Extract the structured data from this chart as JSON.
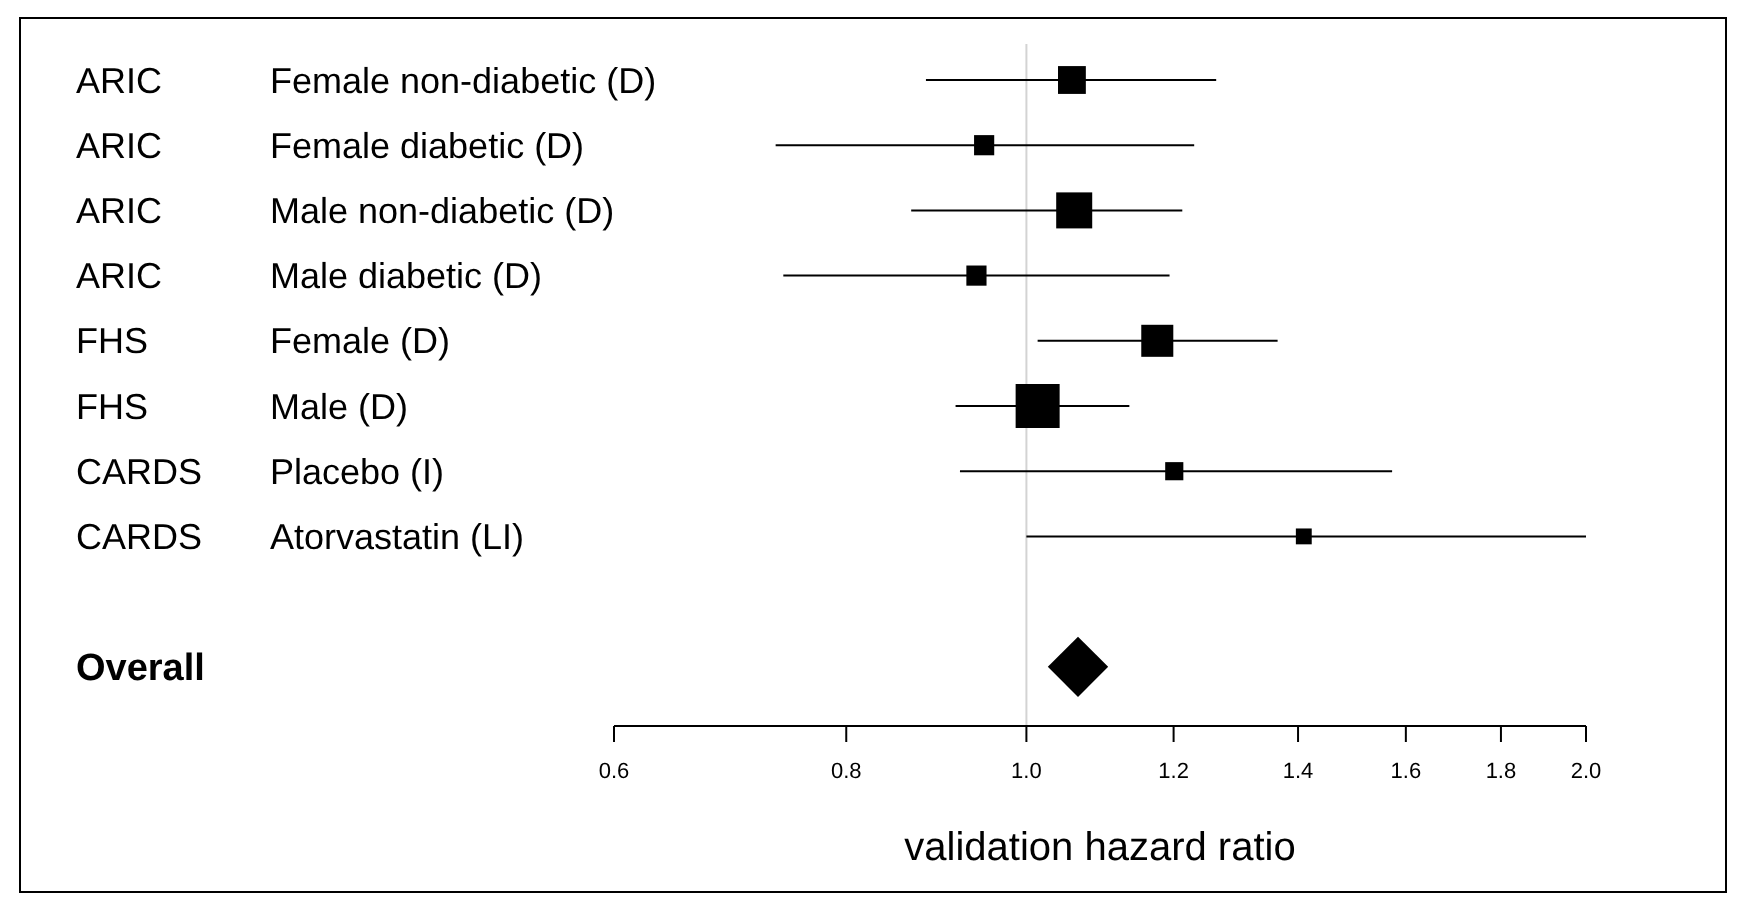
{
  "chart_data": {
    "type": "scatter",
    "orientation": "horizontal",
    "xlabel": "validation hazard ratio",
    "categories": [
      "Female non-diabetic (D)",
      "Female diabetic (D)",
      "Male non-diabetic (D)",
      "Male diabetic (D)",
      "Female (D)",
      "Male (D)",
      "Placebo (I)",
      "Atorvastatin (LI)",
      null,
      null
    ],
    "series": [
      {
        "type": "bubble",
        "marker": "square",
        "color": "#000000",
        "values": [
          1.058,
          0.949,
          1.061,
          0.94,
          1.176,
          1.014,
          1.201,
          1.41,
          null,
          null
        ],
        "sizes": [
          0.4,
          0.21,
          0.67,
          0.21,
          0.53,
          1,
          0.17,
          0.13,
          null,
          null
        ],
        "errors": [
          [
            0.883,
            1.265
          ],
          [
            0.733,
            1.231
          ],
          [
            0.867,
            1.213
          ],
          [
            0.74,
            1.194
          ],
          [
            1.014,
            1.365
          ],
          [
            0.916,
            1.136
          ],
          [
            0.921,
            1.573
          ],
          [
            1.0,
            2.0
          ],
          null,
          null
        ]
      },
      {
        "marker": "diamond",
        "color": "#000000",
        "values": [
          null,
          null,
          null,
          null,
          null,
          null,
          null,
          null,
          null,
          1.066
        ]
      }
    ],
    "annotations": [
      "ARIC",
      "ARIC",
      "ARIC",
      "ARIC",
      "FHS",
      "FHS",
      "CARDS",
      "CARDS",
      "Overall"
    ],
    "log": "x",
    "xlim": [
      0.6,
      2.0
    ],
    "xticks": [
      {
        "value": 0.6,
        "label": "0.6"
      },
      {
        "value": 0.8,
        "label": "0.8"
      },
      {
        "value": 1.0,
        "label": "1.0"
      },
      {
        "value": 1.2,
        "label": "1.2"
      },
      {
        "value": 1.4,
        "label": "1.4"
      },
      {
        "value": 1.6,
        "label": "1.6"
      },
      {
        "value": 1.8,
        "label": "1.8"
      },
      {
        "value": 2.0,
        "label": "2.0"
      }
    ],
    "ref_lines": [
      {
        "axis": "x",
        "value": 1.0,
        "color": "#d3d3d3"
      }
    ],
    "grid": false
  }
}
